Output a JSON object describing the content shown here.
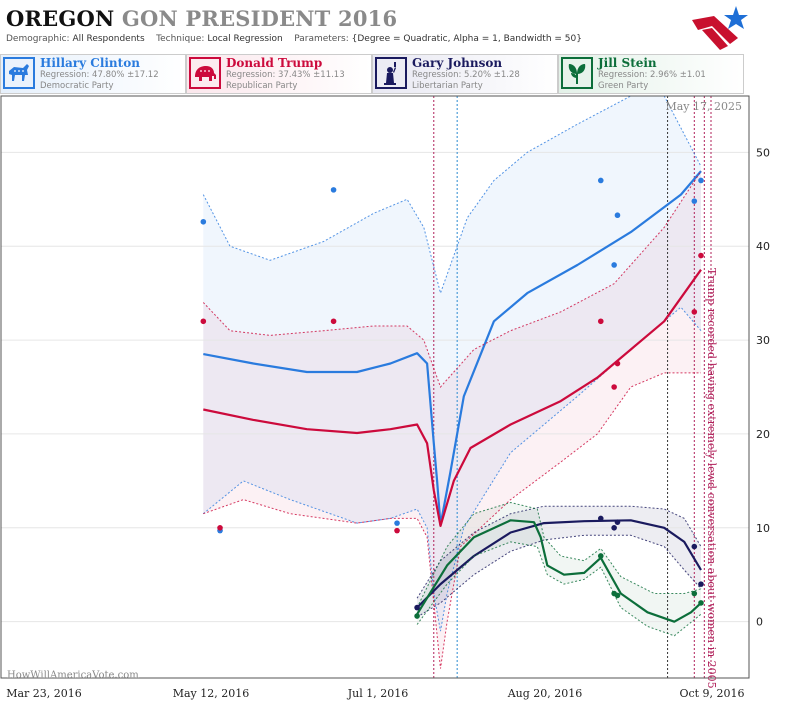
{
  "header": {
    "title_state": "OREGON",
    "title_rest": "GON PRESIDENT 2016",
    "demographic_label": "Demographic:",
    "demographic_value": "All Respondents",
    "technique_label": "Technique:",
    "technique_value": "Local Regression",
    "parameters_label": "Parameters:",
    "parameters_value": "{Degree = Quadratic, Alpha = 1, Bandwidth = 50}"
  },
  "candidates": [
    {
      "name": "Hillary Clinton",
      "regression": "Regression: 47.80% ±17.12",
      "party": "Democratic Party",
      "color": "#2a7bde",
      "icon": "donkey-icon"
    },
    {
      "name": "Donald Trump",
      "regression": "Regression: 37.43% ±11.13",
      "party": "Republican Party",
      "color": "#cc0a3c",
      "icon": "elephant-icon"
    },
    {
      "name": "Gary Johnson",
      "regression": "Regression: 5.20% ±1.28",
      "party": "Libertarian Party",
      "color": "#1a1a5e",
      "icon": "statue-of-liberty-icon"
    },
    {
      "name": "Jill Stein",
      "regression": "Regression: 2.96% ±1.01",
      "party": "Green Party",
      "color": "#0c6e3a",
      "icon": "leaf-icon"
    }
  ],
  "chart_data": {
    "type": "scatter",
    "subtype": "local-regression-with-confidence-band",
    "date_label": "May 17, 2025",
    "watermark": "HowWillAmericaVote.com",
    "annotation": "Trump recorded having extremely lewd conversation about women in 2005",
    "x_ticks": [
      "Mar 23, 2016",
      "May 12, 2016",
      "Jul 1, 2016",
      "Aug 20, 2016",
      "Oct 9, 2016"
    ],
    "y_ticks": [
      0,
      10,
      20,
      30,
      40,
      50
    ],
    "xlim": [
      "2016-03-23",
      "2016-10-09"
    ],
    "ylim": [
      -6,
      56
    ],
    "y_axis_side": "right",
    "event_lines": [
      {
        "date": "2016-07-18",
        "color": "#b0205a"
      },
      {
        "date": "2016-07-25",
        "color": "#2a8ad0"
      },
      {
        "date": "2016-09-26",
        "color": "#333333"
      },
      {
        "date": "2016-10-04",
        "color": "#b0205a"
      },
      {
        "date": "2016-10-07",
        "color": "#b0205a"
      },
      {
        "date": "2016-10-09",
        "color": "#b0205a"
      }
    ],
    "series": [
      {
        "name": "Hillary Clinton",
        "color": "#2a7bde",
        "fill": "rgba(42,123,222,0.07)",
        "points": [
          [
            "2016-05-10",
            42.6
          ],
          [
            "2016-05-15",
            9.7
          ],
          [
            "2016-06-18",
            46
          ],
          [
            "2016-07-07",
            10.5
          ],
          [
            "2016-09-06",
            47
          ],
          [
            "2016-09-11",
            43.3
          ],
          [
            "2016-09-10",
            38
          ],
          [
            "2016-10-04",
            44.8
          ],
          [
            "2016-10-06",
            47
          ]
        ],
        "line": [
          [
            "2016-05-10",
            28.5
          ],
          [
            "2016-05-25",
            27.5
          ],
          [
            "2016-06-10",
            26.6
          ],
          [
            "2016-06-25",
            26.6
          ],
          [
            "2016-07-05",
            27.5
          ],
          [
            "2016-07-13",
            28.6
          ],
          [
            "2016-07-16",
            27.5
          ],
          [
            "2016-07-18",
            19
          ],
          [
            "2016-07-19",
            15
          ],
          [
            "2016-07-20",
            10.3
          ],
          [
            "2016-07-23",
            16
          ],
          [
            "2016-07-27",
            24
          ],
          [
            "2016-08-05",
            32
          ],
          [
            "2016-08-15",
            35
          ],
          [
            "2016-08-30",
            38
          ],
          [
            "2016-09-15",
            41.5
          ],
          [
            "2016-09-30",
            45.5
          ],
          [
            "2016-10-06",
            48
          ]
        ],
        "upper": [
          [
            "2016-05-10",
            45.5
          ],
          [
            "2016-05-18",
            40
          ],
          [
            "2016-05-30",
            38.5
          ],
          [
            "2016-06-15",
            40.5
          ],
          [
            "2016-06-30",
            43.5
          ],
          [
            "2016-07-10",
            45
          ],
          [
            "2016-07-15",
            42
          ],
          [
            "2016-07-20",
            35
          ],
          [
            "2016-07-23",
            38
          ],
          [
            "2016-07-28",
            43
          ],
          [
            "2016-08-05",
            47
          ],
          [
            "2016-08-15",
            50
          ],
          [
            "2016-08-30",
            53
          ],
          [
            "2016-09-15",
            56
          ],
          [
            "2016-09-25",
            56
          ],
          [
            "2016-10-06",
            48.5
          ]
        ],
        "lower": [
          [
            "2016-05-10",
            11.5
          ],
          [
            "2016-05-22",
            15
          ],
          [
            "2016-06-05",
            13
          ],
          [
            "2016-06-25",
            10.5
          ],
          [
            "2016-07-05",
            11
          ],
          [
            "2016-07-13",
            12
          ],
          [
            "2016-07-16",
            10
          ],
          [
            "2016-07-18",
            3
          ],
          [
            "2016-07-20",
            -1
          ],
          [
            "2016-07-22",
            3
          ],
          [
            "2016-07-27",
            10
          ],
          [
            "2016-08-10",
            18
          ],
          [
            "2016-08-30",
            24
          ],
          [
            "2016-09-15",
            29
          ],
          [
            "2016-09-30",
            33.5
          ],
          [
            "2016-10-06",
            31
          ]
        ]
      },
      {
        "name": "Donald Trump",
        "color": "#cc0a3c",
        "fill": "rgba(204,10,60,0.06)",
        "points": [
          [
            "2016-05-10",
            32
          ],
          [
            "2016-05-15",
            10
          ],
          [
            "2016-06-18",
            32
          ],
          [
            "2016-07-07",
            9.7
          ],
          [
            "2016-09-06",
            32
          ],
          [
            "2016-09-10",
            25
          ],
          [
            "2016-09-11",
            27.5
          ],
          [
            "2016-10-04",
            33
          ],
          [
            "2016-10-06",
            39
          ]
        ],
        "line": [
          [
            "2016-05-10",
            22.6
          ],
          [
            "2016-05-25",
            21.5
          ],
          [
            "2016-06-10",
            20.5
          ],
          [
            "2016-06-25",
            20.1
          ],
          [
            "2016-07-05",
            20.5
          ],
          [
            "2016-07-13",
            21
          ],
          [
            "2016-07-16",
            19
          ],
          [
            "2016-07-18",
            14
          ],
          [
            "2016-07-20",
            10.2
          ],
          [
            "2016-07-24",
            15
          ],
          [
            "2016-07-29",
            18.5
          ],
          [
            "2016-08-10",
            21
          ],
          [
            "2016-08-25",
            23.5
          ],
          [
            "2016-09-05",
            26
          ],
          [
            "2016-09-15",
            29
          ],
          [
            "2016-09-25",
            32
          ],
          [
            "2016-10-06",
            37.5
          ]
        ],
        "upper": [
          [
            "2016-05-10",
            34
          ],
          [
            "2016-05-18",
            31
          ],
          [
            "2016-05-30",
            30.5
          ],
          [
            "2016-06-15",
            31
          ],
          [
            "2016-06-30",
            31.5
          ],
          [
            "2016-07-10",
            31.5
          ],
          [
            "2016-07-15",
            30
          ],
          [
            "2016-07-19",
            26
          ],
          [
            "2016-07-20",
            25
          ],
          [
            "2016-07-25",
            27
          ],
          [
            "2016-07-30",
            29
          ],
          [
            "2016-08-10",
            31
          ],
          [
            "2016-08-25",
            33
          ],
          [
            "2016-09-10",
            36
          ],
          [
            "2016-09-25",
            42
          ],
          [
            "2016-10-06",
            48
          ]
        ],
        "lower": [
          [
            "2016-05-10",
            11.5
          ],
          [
            "2016-05-22",
            13
          ],
          [
            "2016-06-05",
            11.5
          ],
          [
            "2016-06-25",
            10.5
          ],
          [
            "2016-07-05",
            11
          ],
          [
            "2016-07-13",
            11
          ],
          [
            "2016-07-16",
            9
          ],
          [
            "2016-07-18",
            2
          ],
          [
            "2016-07-20",
            -5
          ],
          [
            "2016-07-22",
            0
          ],
          [
            "2016-07-26",
            8
          ],
          [
            "2016-08-10",
            13
          ],
          [
            "2016-08-25",
            17
          ],
          [
            "2016-09-05",
            20
          ],
          [
            "2016-09-15",
            25
          ],
          [
            "2016-09-25",
            26.5
          ],
          [
            "2016-10-06",
            26.5
          ]
        ]
      },
      {
        "name": "Gary Johnson",
        "color": "#1a1a5e",
        "fill": "rgba(26,26,94,0.08)",
        "points": [
          [
            "2016-07-13",
            1.5
          ],
          [
            "2016-09-06",
            11
          ],
          [
            "2016-09-10",
            10
          ],
          [
            "2016-09-11",
            10.6
          ],
          [
            "2016-10-04",
            8
          ],
          [
            "2016-10-06",
            4
          ]
        ],
        "line": [
          [
            "2016-07-13",
            1.5
          ],
          [
            "2016-07-20",
            4
          ],
          [
            "2016-07-30",
            7
          ],
          [
            "2016-08-10",
            9.5
          ],
          [
            "2016-08-20",
            10.5
          ],
          [
            "2016-09-01",
            10.7
          ],
          [
            "2016-09-15",
            10.8
          ],
          [
            "2016-09-25",
            10
          ],
          [
            "2016-10-01",
            8.5
          ],
          [
            "2016-10-06",
            5.5
          ]
        ],
        "upper": [
          [
            "2016-07-13",
            2.5
          ],
          [
            "2016-07-20",
            6.5
          ],
          [
            "2016-07-30",
            9.5
          ],
          [
            "2016-08-10",
            11.5
          ],
          [
            "2016-08-20",
            12.3
          ],
          [
            "2016-09-01",
            12.3
          ],
          [
            "2016-09-15",
            12.3
          ],
          [
            "2016-09-25",
            12
          ],
          [
            "2016-10-01",
            11
          ],
          [
            "2016-10-06",
            8
          ]
        ],
        "lower": [
          [
            "2016-07-13",
            0.5
          ],
          [
            "2016-07-20",
            2
          ],
          [
            "2016-07-30",
            5
          ],
          [
            "2016-08-10",
            7.5
          ],
          [
            "2016-08-20",
            8.7
          ],
          [
            "2016-09-01",
            9.2
          ],
          [
            "2016-09-15",
            9.2
          ],
          [
            "2016-09-25",
            8
          ],
          [
            "2016-10-01",
            5.5
          ],
          [
            "2016-10-06",
            3.5
          ]
        ]
      },
      {
        "name": "Jill Stein",
        "color": "#0c6e3a",
        "fill": "rgba(12,110,58,0.06)",
        "points": [
          [
            "2016-07-13",
            0.6
          ],
          [
            "2016-09-06",
            7
          ],
          [
            "2016-09-10",
            3
          ],
          [
            "2016-09-11",
            2.8
          ],
          [
            "2016-10-04",
            3
          ],
          [
            "2016-10-06",
            2
          ]
        ],
        "line": [
          [
            "2016-07-13",
            0.8
          ],
          [
            "2016-07-22",
            6
          ],
          [
            "2016-07-30",
            9
          ],
          [
            "2016-08-10",
            10.8
          ],
          [
            "2016-08-17",
            10.6
          ],
          [
            "2016-08-19",
            9
          ],
          [
            "2016-08-21",
            6
          ],
          [
            "2016-08-26",
            5
          ],
          [
            "2016-09-01",
            5.2
          ],
          [
            "2016-09-06",
            6.8
          ],
          [
            "2016-09-12",
            3
          ],
          [
            "2016-09-20",
            1
          ],
          [
            "2016-09-28",
            0
          ],
          [
            "2016-10-03",
            1
          ],
          [
            "2016-10-06",
            2
          ]
        ],
        "upper": [
          [
            "2016-07-13",
            1.5
          ],
          [
            "2016-07-22",
            8
          ],
          [
            "2016-07-30",
            11.5
          ],
          [
            "2016-08-10",
            12.7
          ],
          [
            "2016-08-18",
            12
          ],
          [
            "2016-08-20",
            9
          ],
          [
            "2016-08-25",
            7
          ],
          [
            "2016-09-01",
            6.5
          ],
          [
            "2016-09-06",
            7.8
          ],
          [
            "2016-09-12",
            4.8
          ],
          [
            "2016-09-22",
            3
          ],
          [
            "2016-10-01",
            3
          ],
          [
            "2016-10-06",
            3.5
          ]
        ],
        "lower": [
          [
            "2016-07-13",
            -0.3
          ],
          [
            "2016-07-22",
            4
          ],
          [
            "2016-07-30",
            7
          ],
          [
            "2016-08-10",
            8.5
          ],
          [
            "2016-08-18",
            8
          ],
          [
            "2016-08-21",
            5
          ],
          [
            "2016-08-26",
            4
          ],
          [
            "2016-09-01",
            4.5
          ],
          [
            "2016-09-06",
            5.8
          ],
          [
            "2016-09-12",
            1.5
          ],
          [
            "2016-09-20",
            -0.5
          ],
          [
            "2016-09-28",
            -1.5
          ],
          [
            "2016-10-06",
            0.8
          ]
        ]
      }
    ]
  }
}
